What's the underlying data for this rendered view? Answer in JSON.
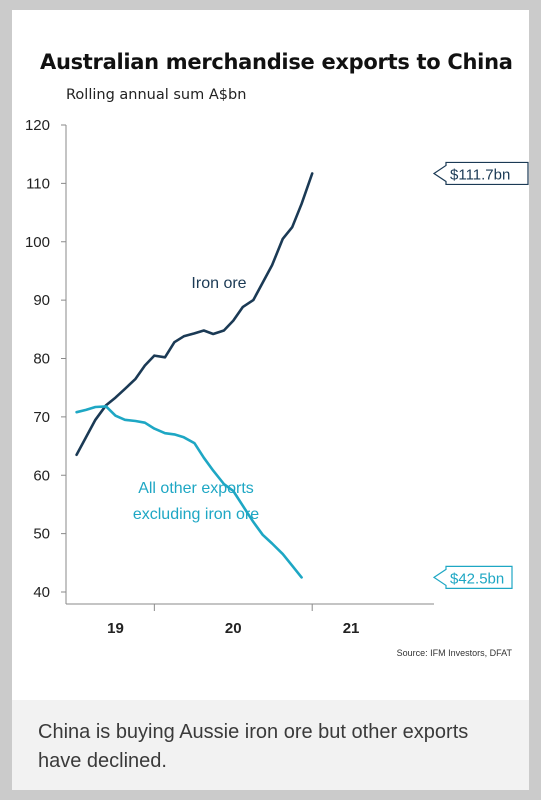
{
  "chart_data": {
    "type": "line",
    "title": "Australian merchandise exports to China",
    "subtitle": "Rolling annual sum A$bn",
    "ylim": [
      40,
      120
    ],
    "yticks": [
      40,
      50,
      60,
      70,
      80,
      90,
      100,
      110,
      120
    ],
    "xlim": [
      2018.58,
      2021.67
    ],
    "xticks": [
      {
        "value": 2019.0,
        "label": "19",
        "tick": false
      },
      {
        "value": 2019.33,
        "label": "",
        "tick": true
      },
      {
        "value": 2020.0,
        "label": "20",
        "tick": false
      },
      {
        "value": 2020.67,
        "label": "",
        "tick": true
      },
      {
        "value": 2021.0,
        "label": "21",
        "tick": false
      }
    ],
    "grid": false,
    "source": "Source: IFM Investors, DFAT",
    "series": [
      {
        "name": "Iron ore",
        "color": "#1b3a55",
        "end_label": "$111.7bn",
        "x": [
          2018.67,
          2018.75,
          2018.83,
          2018.92,
          2019.0,
          2019.08,
          2019.17,
          2019.25,
          2019.33,
          2019.42,
          2019.5,
          2019.58,
          2019.67,
          2019.75,
          2019.83,
          2019.92,
          2020.0,
          2020.08,
          2020.17,
          2020.25,
          2020.33,
          2020.42,
          2020.5,
          2020.58,
          2020.67,
          2020.75,
          2020.83,
          2020.92,
          2021.0,
          2021.08,
          2021.17,
          2021.25
        ],
        "values": [
          63.5,
          66.5,
          69.5,
          72.0,
          73.3,
          74.8,
          76.5,
          78.8,
          80.5,
          80.2,
          82.8,
          83.8,
          84.3,
          84.8,
          84.2,
          84.8,
          86.5,
          88.8,
          90.0,
          93.0,
          96.0,
          100.5,
          102.5,
          106.5,
          111.7,
          111.7,
          111.7,
          111.7,
          111.7,
          111.7,
          111.7,
          111.7
        ]
      },
      {
        "name": "All other exports excluding iron ore",
        "color": "#1ea7c4",
        "end_label": "$42.5bn",
        "x": [
          2018.67,
          2018.75,
          2018.83,
          2018.92,
          2019.0,
          2019.08,
          2019.17,
          2019.25,
          2019.33,
          2019.42,
          2019.5,
          2019.58,
          2019.67,
          2019.75,
          2019.83,
          2019.92,
          2020.0,
          2020.08,
          2020.17,
          2020.25,
          2020.33,
          2020.42,
          2020.5,
          2020.58,
          2020.67,
          2020.75,
          2020.83,
          2020.92,
          2021.0,
          2021.08,
          2021.17,
          2021.25
        ],
        "values": [
          70.8,
          71.2,
          71.7,
          71.8,
          70.2,
          69.5,
          69.3,
          69.0,
          68.0,
          67.2,
          67.0,
          66.5,
          65.5,
          63.0,
          60.8,
          58.5,
          57.3,
          54.8,
          52.0,
          49.8,
          48.3,
          46.5,
          44.5,
          42.5,
          42.5,
          42.5,
          42.5,
          42.5,
          42.5,
          42.5,
          42.5,
          42.5
        ]
      }
    ],
    "annotations": [
      {
        "series": 0,
        "lines": [
          "Iron ore"
        ]
      },
      {
        "series": 1,
        "lines": [
          "All other exports",
          "excluding iron ore"
        ]
      }
    ]
  },
  "caption": "China is buying Aussie iron ore but other exports have declined."
}
